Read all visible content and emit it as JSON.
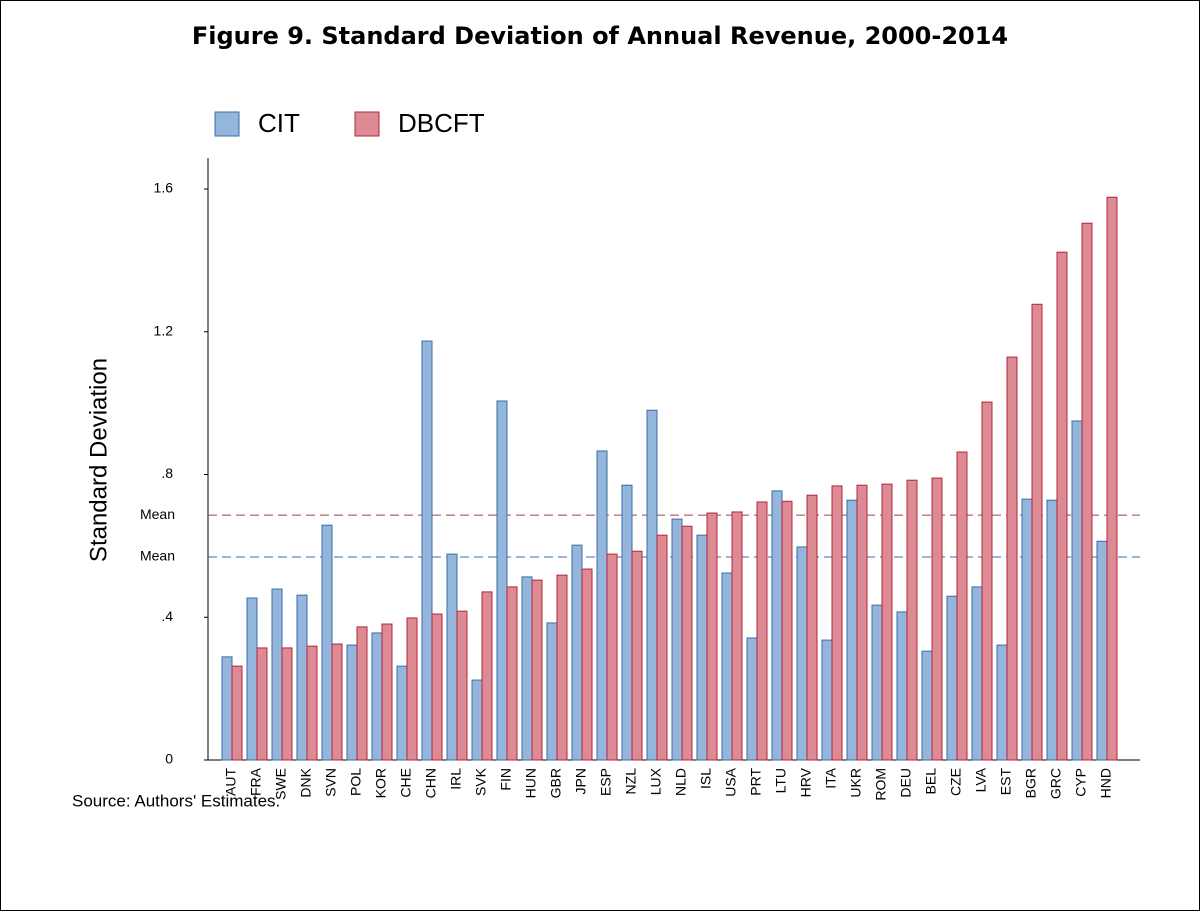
{
  "chart_data": {
    "type": "bar",
    "title": "Figure 9. Standard Deviation of Annual Revenue, 2000-2014",
    "y_label": "Standard Deviation",
    "source": "Source: Authors' Estimates.",
    "categories": [
      "AUT",
      "FRA",
      "SWE",
      "DNK",
      "SVN",
      "POL",
      "KOR",
      "CHE",
      "CHN",
      "IRL",
      "SVK",
      "FIN",
      "HUN",
      "GBR",
      "JPN",
      "ESP",
      "NZL",
      "LUX",
      "NLD",
      "ISL",
      "USA",
      "PRT",
      "LTU",
      "HRV",
      "ITA",
      "UKR",
      "ROM",
      "DEU",
      "BEL",
      "CZE",
      "LVA",
      "EST",
      "BGR",
      "GRC",
      "CYP",
      "HND"
    ],
    "series": [
      {
        "name": "CIT",
        "color": "#94b6dd",
        "edge": "#3a6ea5",
        "values": [
          0.289,
          0.454,
          0.479,
          0.462,
          0.658,
          0.322,
          0.356,
          0.263,
          1.174,
          0.577,
          0.224,
          1.006,
          0.513,
          0.384,
          0.602,
          0.866,
          0.77,
          0.98,
          0.675,
          0.63,
          0.524,
          0.342,
          0.754,
          0.597,
          0.336,
          0.728,
          0.434,
          0.415,
          0.305,
          0.459,
          0.485,
          0.322,
          0.731,
          0.728,
          0.95,
          0.613
        ]
      },
      {
        "name": "DBCFT",
        "color": "#dc8a94",
        "edge": "#b5243a",
        "values": [
          0.263,
          0.314,
          0.314,
          0.319,
          0.325,
          0.373,
          0.381,
          0.398,
          0.409,
          0.417,
          0.471,
          0.485,
          0.504,
          0.518,
          0.535,
          0.577,
          0.585,
          0.63,
          0.655,
          0.692,
          0.695,
          0.723,
          0.725,
          0.742,
          0.768,
          0.77,
          0.773,
          0.784,
          0.79,
          0.863,
          1.003,
          1.129,
          1.277,
          1.423,
          1.504,
          1.577
        ]
      }
    ],
    "mean_lines": [
      {
        "value": 0.686,
        "label": "Mean",
        "color": "#a0404e"
      },
      {
        "value": 0.569,
        "label": "Mean",
        "color": "#3a6ea5"
      }
    ],
    "ylim": [
      0,
      1.6
    ],
    "yticks": [
      0,
      {
        "value": 0.4,
        "label": ".4"
      },
      {
        "value": 0.8,
        "label": ".8"
      },
      1.2,
      1.6
    ],
    "grid": false
  }
}
